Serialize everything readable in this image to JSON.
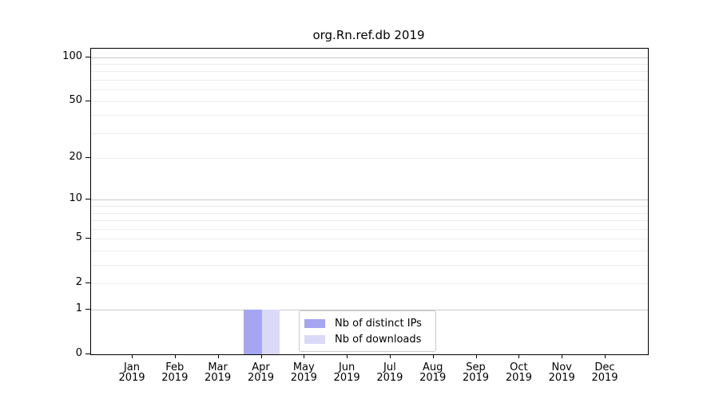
{
  "chart_data": {
    "type": "bar",
    "title": "org.Rn.ref.db 2019",
    "categories": [
      [
        "Jan",
        "2019"
      ],
      [
        "Feb",
        "2019"
      ],
      [
        "Mar",
        "2019"
      ],
      [
        "Apr",
        "2019"
      ],
      [
        "May",
        "2019"
      ],
      [
        "Jun",
        "2019"
      ],
      [
        "Jul",
        "2019"
      ],
      [
        "Aug",
        "2019"
      ],
      [
        "Sep",
        "2019"
      ],
      [
        "Oct",
        "2019"
      ],
      [
        "Nov",
        "2019"
      ],
      [
        "Dec",
        "2019"
      ]
    ],
    "series": [
      {
        "name": "Nb of distinct IPs",
        "color": "#a5a5f2",
        "values": [
          0,
          0,
          0,
          1,
          0,
          0,
          0,
          0,
          0,
          0,
          0,
          0
        ]
      },
      {
        "name": "Nb of downloads",
        "color": "#dadaf8",
        "values": [
          0,
          0,
          0,
          1,
          0,
          0,
          0,
          0,
          0,
          0,
          0,
          0
        ]
      }
    ],
    "xlabel": "",
    "ylabel": "",
    "yscale": "log1p",
    "ylim": [
      0,
      114
    ],
    "y_tick_labels": [
      100,
      50,
      20,
      10,
      5,
      2,
      1,
      0
    ],
    "y_gridlines_major": [
      1,
      10,
      100
    ],
    "y_gridlines_minor": [
      2,
      3,
      4,
      5,
      6,
      7,
      8,
      9,
      20,
      30,
      40,
      50,
      60,
      70,
      80,
      90
    ],
    "grid": true,
    "legend_position": "inside-bottom-center"
  }
}
